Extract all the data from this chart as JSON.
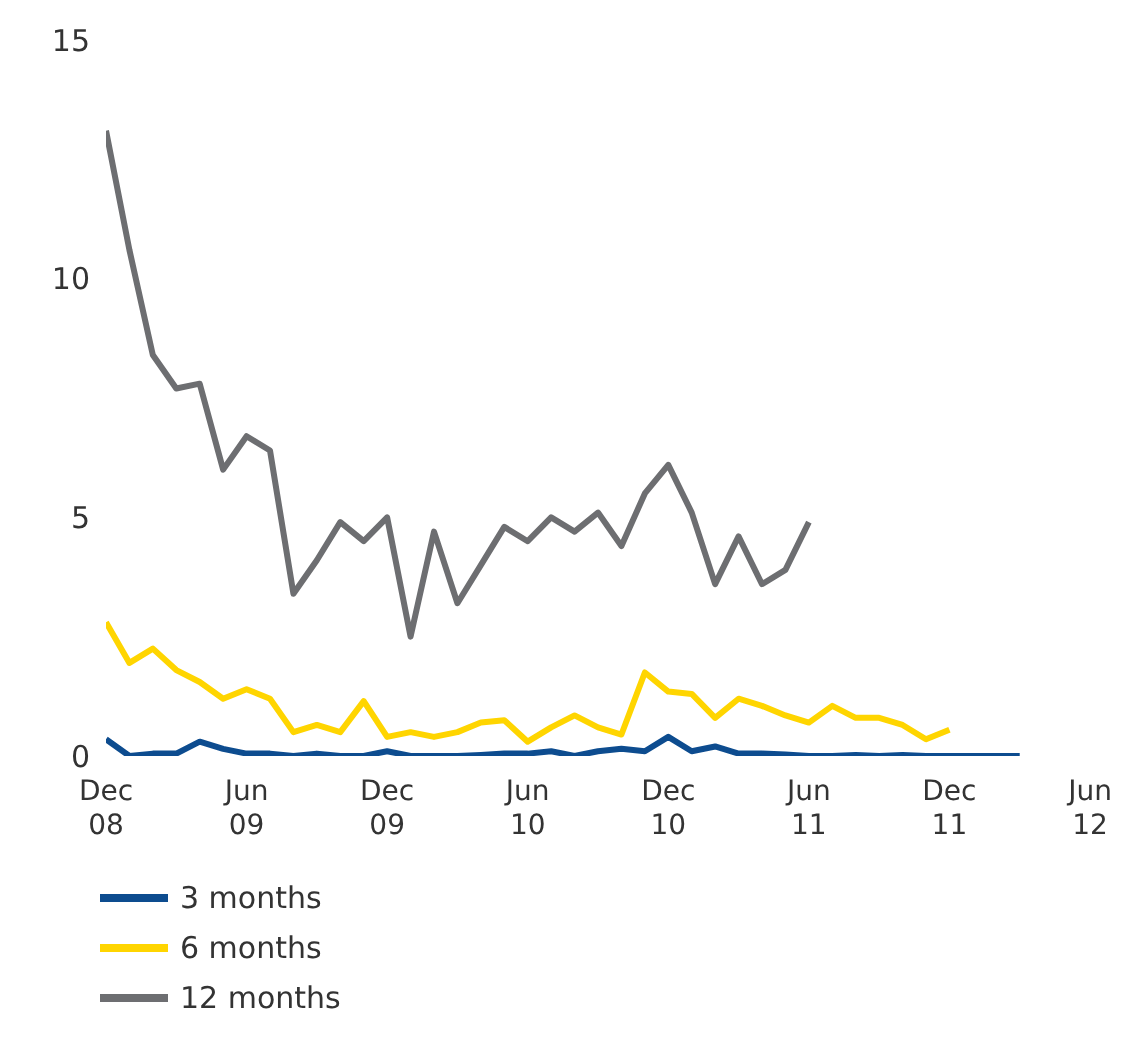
{
  "chart_data": {
    "type": "line",
    "x": [
      "2008-12",
      "2009-01",
      "2009-02",
      "2009-03",
      "2009-04",
      "2009-05",
      "2009-06",
      "2009-07",
      "2009-08",
      "2009-09",
      "2009-10",
      "2009-11",
      "2009-12",
      "2010-01",
      "2010-02",
      "2010-03",
      "2010-04",
      "2010-05",
      "2010-06",
      "2010-07",
      "2010-08",
      "2010-09",
      "2010-10",
      "2010-11",
      "2010-12",
      "2011-01",
      "2011-02",
      "2011-03",
      "2011-04",
      "2011-05",
      "2011-06",
      "2011-07",
      "2011-08",
      "2011-09",
      "2011-10",
      "2011-11",
      "2011-12",
      "2012-01",
      "2012-02",
      "2012-03"
    ],
    "series": [
      {
        "name": "3 months",
        "color": "#0d4c8f",
        "values": [
          0.35,
          0.0,
          0.05,
          0.05,
          0.3,
          0.15,
          0.05,
          0.05,
          0.0,
          0.05,
          0.0,
          0.0,
          0.1,
          0.0,
          0.0,
          0.0,
          0.02,
          0.05,
          0.05,
          0.1,
          0.0,
          0.1,
          0.15,
          0.1,
          0.4,
          0.1,
          0.2,
          0.05,
          0.05,
          0.03,
          0.0,
          0.0,
          0.02,
          0.0,
          0.02,
          0.0,
          0.0,
          0.0,
          0.0,
          0.0
        ]
      },
      {
        "name": "6 months",
        "color": "#ffd500",
        "values": [
          2.8,
          1.95,
          2.25,
          1.8,
          1.55,
          1.2,
          1.4,
          1.2,
          0.5,
          0.65,
          0.5,
          1.15,
          0.4,
          0.5,
          0.4,
          0.5,
          0.7,
          0.75,
          0.3,
          0.6,
          0.85,
          0.6,
          0.45,
          1.75,
          1.35,
          1.3,
          0.8,
          1.2,
          1.05,
          0.85,
          0.7,
          1.05,
          0.8,
          0.8,
          0.65,
          0.35,
          0.55,
          null,
          null,
          null
        ]
      },
      {
        "name": "12 months",
        "color": "#6d6e71",
        "values": [
          13.1,
          10.6,
          8.4,
          7.7,
          7.8,
          6.0,
          6.7,
          6.4,
          3.4,
          4.1,
          4.9,
          4.5,
          5.0,
          2.5,
          4.7,
          3.2,
          4.0,
          4.8,
          4.5,
          5.0,
          4.7,
          5.1,
          4.4,
          5.5,
          6.1,
          5.1,
          3.6,
          4.6,
          3.6,
          3.9,
          4.9,
          null,
          null,
          null,
          null,
          null,
          null,
          null,
          null,
          null
        ]
      }
    ],
    "xlim": [
      "2008-12",
      "2012-06"
    ],
    "xticks": [
      {
        "value": "2008-12",
        "label": "Dec 08"
      },
      {
        "value": "2009-06",
        "label": "Jun 09"
      },
      {
        "value": "2009-12",
        "label": "Dec 09"
      },
      {
        "value": "2010-06",
        "label": "Jun 10"
      },
      {
        "value": "2010-12",
        "label": "Dec 10"
      },
      {
        "value": "2011-06",
        "label": "Jun 11"
      },
      {
        "value": "2011-12",
        "label": "Dec 11"
      },
      {
        "value": "2012-06",
        "label": "Jun 12"
      }
    ],
    "ylim": [
      0,
      15
    ],
    "yticks": [
      0,
      5,
      10,
      15
    ],
    "grid": false,
    "legend": "bottom left",
    "marker": "none",
    "line_style": "solid"
  }
}
